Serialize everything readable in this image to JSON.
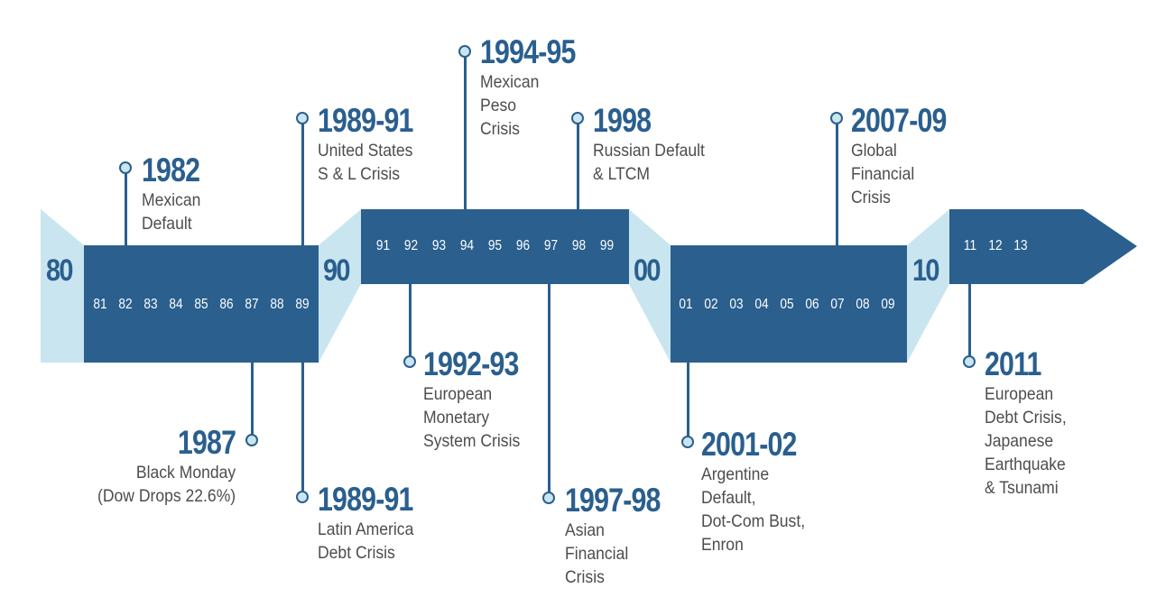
{
  "colors": {
    "band": "#2a5f8e",
    "wing": "#c9e6f0",
    "text": "#4d4d4d"
  },
  "decades": [
    "80",
    "90",
    "00",
    "10"
  ],
  "years": {
    "eighties": [
      "81",
      "82",
      "83",
      "84",
      "85",
      "86",
      "87",
      "88",
      "89"
    ],
    "nineties": [
      "91",
      "92",
      "93",
      "94",
      "95",
      "96",
      "97",
      "98",
      "99"
    ],
    "two_thousands": [
      "01",
      "02",
      "03",
      "04",
      "05",
      "06",
      "07",
      "08",
      "09"
    ],
    "twenty_tens": [
      "11",
      "12",
      "13"
    ]
  },
  "events": [
    {
      "year": "1982",
      "lines": [
        "Mexican",
        "Default"
      ]
    },
    {
      "year": "1987",
      "lines": [
        "Black Monday",
        "(Dow Drops 22.6%)"
      ]
    },
    {
      "year": "1989-91",
      "lines": [
        "United States",
        "S & L Crisis"
      ]
    },
    {
      "year": "1989-91",
      "lines": [
        "Latin America",
        "Debt Crisis"
      ]
    },
    {
      "year": "1992-93",
      "lines": [
        "European",
        "Monetary",
        "System Crisis"
      ]
    },
    {
      "year": "1994-95",
      "lines": [
        "Mexican",
        "Peso",
        "Crisis"
      ]
    },
    {
      "year": "1997-98",
      "lines": [
        "Asian",
        "Financial",
        "Crisis"
      ]
    },
    {
      "year": "1998",
      "lines": [
        "Russian Default",
        "& LTCM"
      ]
    },
    {
      "year": "2001-02",
      "lines": [
        "Argentine",
        "Default,",
        "Dot-Com Bust,",
        "Enron"
      ]
    },
    {
      "year": "2007-09",
      "lines": [
        "Global",
        "Financial",
        "Crisis"
      ]
    },
    {
      "year": "2011",
      "lines": [
        "European",
        "Debt Crisis,",
        "Japanese",
        "Earthquake",
        "& Tsunami"
      ]
    }
  ]
}
